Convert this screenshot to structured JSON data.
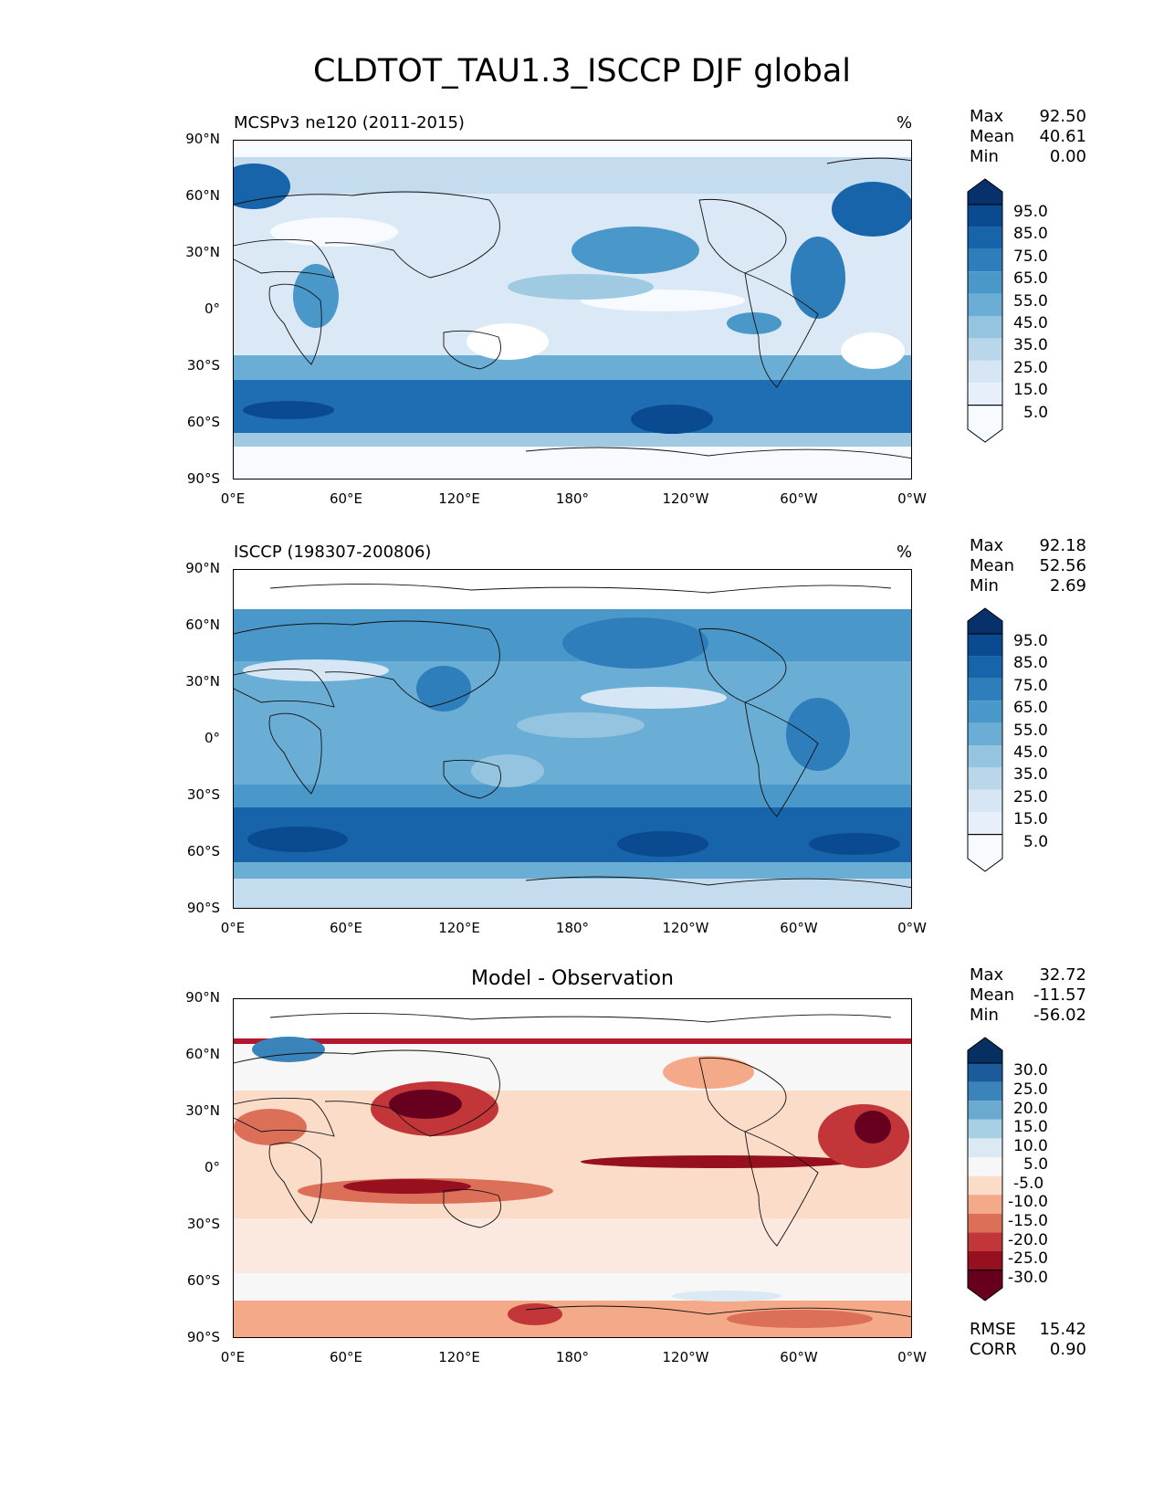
{
  "title": "CLDTOT_TAU1.3_ISCCP DJF global",
  "axes": {
    "lat_ticks": [
      "90°N",
      "60°N",
      "30°N",
      "0°",
      "30°S",
      "60°S",
      "90°S"
    ],
    "lon_ticks": [
      "0°E",
      "60°E",
      "120°E",
      "180°",
      "120°W",
      "60°W",
      "0°W"
    ]
  },
  "panels": [
    {
      "title": "MCSPv3 ne120 (2011-2015)",
      "unit": "%",
      "stats": [
        {
          "label": "Max",
          "value": "92.50"
        },
        {
          "label": "Mean",
          "value": "40.61"
        },
        {
          "label": "Min",
          "value": "0.00"
        }
      ],
      "colorbar": {
        "labels": [
          "95.0",
          "85.0",
          "75.0",
          "65.0",
          "55.0",
          "45.0",
          "35.0",
          "25.0",
          "15.0",
          "5.0"
        ],
        "colors": [
          "#08306b",
          "#0a4a90",
          "#1764ab",
          "#2e7ebc",
          "#4a98c9",
          "#6aaed6",
          "#94c4df",
          "#b9d6ea",
          "#d6e6f4",
          "#e7f0fa",
          "#f7fbff"
        ]
      }
    },
    {
      "title": "ISCCP (198307-200806)",
      "unit": "%",
      "stats": [
        {
          "label": "Max",
          "value": "92.18"
        },
        {
          "label": "Mean",
          "value": "52.56"
        },
        {
          "label": "Min",
          "value": "2.69"
        }
      ],
      "colorbar": {
        "labels": [
          "95.0",
          "85.0",
          "75.0",
          "65.0",
          "55.0",
          "45.0",
          "35.0",
          "25.0",
          "15.0",
          "5.0"
        ],
        "colors": [
          "#08306b",
          "#0a4a90",
          "#1764ab",
          "#2e7ebc",
          "#4a98c9",
          "#6aaed6",
          "#94c4df",
          "#b9d6ea",
          "#d6e6f4",
          "#e7f0fa",
          "#f7fbff"
        ]
      }
    },
    {
      "title": "Model - Observation",
      "unit": "",
      "stats": [
        {
          "label": "Max",
          "value": "32.72"
        },
        {
          "label": "Mean",
          "value": "-11.57"
        },
        {
          "label": "Min",
          "value": "-56.02"
        }
      ],
      "metrics": [
        {
          "label": "RMSE",
          "value": "15.42"
        },
        {
          "label": "CORR",
          "value": "0.90"
        }
      ],
      "colorbar": {
        "labels": [
          "30.0",
          "25.0",
          "20.0",
          "15.0",
          "10.0",
          "5.0",
          "-5.0",
          "-10.0",
          "-15.0",
          "-20.0",
          "-25.0",
          "-30.0"
        ],
        "colors": [
          "#053061",
          "#1b5a9b",
          "#3a84bb",
          "#6aa9d0",
          "#a8d0e4",
          "#dbeaf2",
          "#f7f7f7",
          "#fbdcc9",
          "#f4aa88",
          "#dc6f58",
          "#c23639",
          "#96101f",
          "#67001f"
        ]
      }
    }
  ]
}
